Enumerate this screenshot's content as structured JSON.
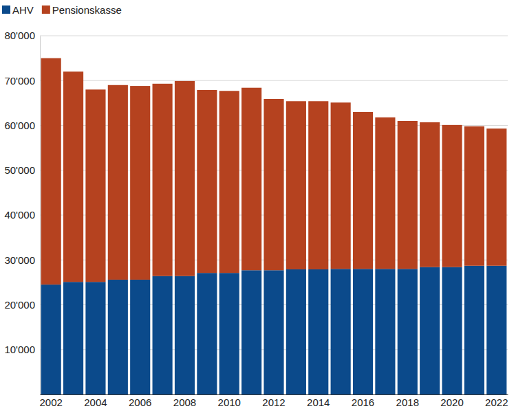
{
  "chart_data": {
    "type": "bar",
    "stacked": true,
    "grid": true,
    "legend": "top",
    "categories": [
      "2002",
      null,
      "2004",
      null,
      "2006",
      null,
      "2008",
      null,
      "2010",
      null,
      "2012",
      null,
      "2014",
      null,
      "2016",
      null,
      "2018",
      null,
      "2020",
      null,
      "2022"
    ],
    "series": [
      {
        "name": "AHV",
        "color": "#0b4a8b",
        "values": [
          24500,
          25100,
          25100,
          25600,
          25600,
          26400,
          26400,
          27100,
          27100,
          27700,
          27700,
          27900,
          27900,
          28000,
          28000,
          28000,
          28000,
          28400,
          28400,
          28700,
          28700
        ]
      },
      {
        "name": "Pensionskasse",
        "color": "#b5421f",
        "values": [
          50500,
          46900,
          42900,
          43400,
          43200,
          42900,
          43500,
          40800,
          40600,
          40700,
          38200,
          37500,
          37500,
          37100,
          35000,
          33800,
          33000,
          32300,
          31700,
          31100,
          30600
        ]
      }
    ],
    "ylim": [
      0,
      80000
    ],
    "yticks": [
      {
        "value": 10000,
        "label": "10'000"
      },
      {
        "value": 20000,
        "label": "20'000"
      },
      {
        "value": 30000,
        "label": "30'000"
      },
      {
        "value": 40000,
        "label": "40'000"
      },
      {
        "value": 50000,
        "label": "50'000"
      },
      {
        "value": 60000,
        "label": "60'000"
      },
      {
        "value": 70000,
        "label": "70'000"
      },
      {
        "value": 80000,
        "label": "80'000"
      }
    ]
  }
}
